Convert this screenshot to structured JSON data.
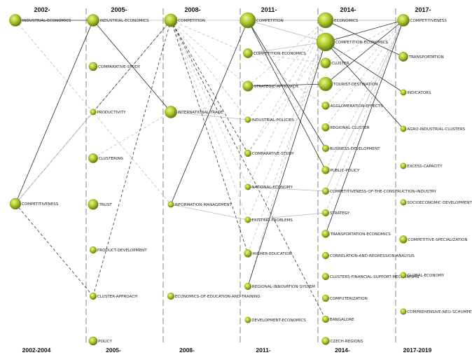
{
  "periods": [
    {
      "top": "2002-",
      "bottom": "2002-2004"
    },
    {
      "top": "2005-",
      "bottom": "2005-"
    },
    {
      "top": "2008-",
      "bottom": "2008-"
    },
    {
      "top": "2011-",
      "bottom": "2011-"
    },
    {
      "top": "2014-",
      "bottom": "2014-"
    },
    {
      "top": "2017-",
      "bottom": "2017-2019"
    }
  ],
  "colors": {
    "node_light": "#e6f27a",
    "node_mid": "#a8c428",
    "node_dark": "#5c7a10",
    "divider": "#9a9a9a"
  },
  "nodes": [
    {
      "id": "p0_industrial_economics",
      "col": 0,
      "label": "INDUSTRIAL-ECONOMICS",
      "weight": 9
    },
    {
      "id": "p0_competitiveness",
      "col": 0,
      "label": "COMPETITIVENESS",
      "weight": 8
    },
    {
      "id": "p1_industrial_economics",
      "col": 1,
      "label": "INDUSTRIAL-ECONOMICS",
      "weight": 9
    },
    {
      "id": "p1_comparative_study",
      "col": 1,
      "label": "COMPARATIVE-STUDY",
      "weight": 5
    },
    {
      "id": "p1_productivity",
      "col": 1,
      "label": "PRODUCTIVITY",
      "weight": 2
    },
    {
      "id": "p1_clustering",
      "col": 1,
      "label": "CLUSTERING",
      "weight": 6
    },
    {
      "id": "p1_trust",
      "col": 1,
      "label": "TRUST",
      "weight": 7
    },
    {
      "id": "p1_product_development",
      "col": 1,
      "label": "PRODUCT-DEVELOPMENT",
      "weight": 3
    },
    {
      "id": "p1_cluster_approach",
      "col": 1,
      "label": "CLUSTER-APPROACH",
      "weight": 3
    },
    {
      "id": "p1_policy",
      "col": 1,
      "label": "POLICY",
      "weight": 5
    },
    {
      "id": "p2_competition",
      "col": 2,
      "label": "COMPETITION",
      "weight": 10
    },
    {
      "id": "p2_international_trade",
      "col": 2,
      "label": "INTERNATIONAL-TRADE",
      "weight": 9
    },
    {
      "id": "p2_information_management",
      "col": 2,
      "label": "INFORMATION-MANAGEMENT",
      "weight": 2
    },
    {
      "id": "p2_economics_of_education",
      "col": 2,
      "label": "ECONOMICS-OF-EDUCATION-AND-TRAINING",
      "weight": 3
    },
    {
      "id": "p3_competition",
      "col": 3,
      "label": "COMPETITION",
      "weight": 13
    },
    {
      "id": "p3_competition_economics",
      "col": 3,
      "label": "COMPETITION-ECONOMICS",
      "weight": 6
    },
    {
      "id": "p3_strategic_approach",
      "col": 3,
      "label": "STRATEGIC-APPROACH",
      "weight": 7
    },
    {
      "id": "p3_industrial_policies",
      "col": 3,
      "label": "INDUSTRIAL-POLICIES",
      "weight": 2
    },
    {
      "id": "p3_comparative_study",
      "col": 3,
      "label": "COMPARATIVE-STUDY",
      "weight": 3
    },
    {
      "id": "p3_national_economy",
      "col": 3,
      "label": "NATIONAL-ECONOMY",
      "weight": 2
    },
    {
      "id": "p3_existing_problems",
      "col": 3,
      "label": "EXISTING-PROBLEMS",
      "weight": 2
    },
    {
      "id": "p3_higher_education",
      "col": 3,
      "label": "HIGHER-EDUCATION",
      "weight": 4
    },
    {
      "id": "p3_regional_innovation_system",
      "col": 3,
      "label": "REGIONAL-INNOVATION-SYSTEM",
      "weight": 3
    },
    {
      "id": "p3_development_economics",
      "col": 3,
      "label": "DEVELOPMENT-ECONOMICS",
      "weight": 2
    },
    {
      "id": "p4_economics",
      "col": 4,
      "label": "ECONOMICS",
      "weight": 13
    },
    {
      "id": "p4_competition_economics",
      "col": 4,
      "label": "COMPETITION-ECONOMICS",
      "weight": 16
    },
    {
      "id": "p4_cluster",
      "col": 4,
      "label": "CLUSTER",
      "weight": 7
    },
    {
      "id": "p4_tourist_destination",
      "col": 4,
      "label": "TOURIST-DESTINATION",
      "weight": 11
    },
    {
      "id": "p4_agglomeration_effects",
      "col": 4,
      "label": "AGGLOMERATION-EFFECTS",
      "weight": 4
    },
    {
      "id": "p4_regional_cluster",
      "col": 4,
      "label": "REGIONAL-CLUSTER",
      "weight": 4
    },
    {
      "id": "p4_business_development",
      "col": 4,
      "label": "BUSINESS-DEVELOPMENT",
      "weight": 3
    },
    {
      "id": "p4_public_policy",
      "col": 4,
      "label": "PUBLIC-POLICY",
      "weight": 4
    },
    {
      "id": "p4_competitiveness_construction",
      "col": 4,
      "label": "COMPETITIVENESS-OF-THE-CONSTRUCTION-INDUSTRY",
      "weight": 3
    },
    {
      "id": "p4_strategy",
      "col": 4,
      "label": "STRATEGY",
      "weight": 3
    },
    {
      "id": "p4_transportation_economics",
      "col": 4,
      "label": "TRANSPORTATION-ECONOMICS",
      "weight": 4
    },
    {
      "id": "p4_correlation_regression",
      "col": 4,
      "label": "CORRELATION-AND-REGRESSION-ANALYSIS",
      "weight": 3
    },
    {
      "id": "p4_clusters_financial_support",
      "col": 4,
      "label": "CLUSTERS-FINANCIAL-SUPPORT-MECHANISMS",
      "weight": 3
    },
    {
      "id": "p4_computerization",
      "col": 4,
      "label": "COMPUTERIZATION",
      "weight": 3
    },
    {
      "id": "p4_bangalore",
      "col": 4,
      "label": "BANGALORE",
      "weight": 3
    },
    {
      "id": "p4_czech_regions",
      "col": 4,
      "label": "CZECH-REGIONS",
      "weight": 4
    },
    {
      "id": "p5_competitiveness",
      "col": 5,
      "label": "COMPETITIVENESS",
      "weight": 9
    },
    {
      "id": "p5_transportation",
      "col": 5,
      "label": "TRANSPORTATION",
      "weight": 6
    },
    {
      "id": "p5_indicators",
      "col": 5,
      "label": "INDICATORS",
      "weight": 2
    },
    {
      "id": "p5_agro_industrial_clusters",
      "col": 5,
      "label": "AGRO-INDUSTRIAL-CLUSTERS",
      "weight": 2
    },
    {
      "id": "p5_excess_capacity",
      "col": 5,
      "label": "EXCESS-CAPACITY",
      "weight": 2
    },
    {
      "id": "p5_socioeconomic_development",
      "col": 5,
      "label": "SOCIOECONOMIC-DEVELOPMENT",
      "weight": 2
    },
    {
      "id": "p5_competitive_specialization",
      "col": 5,
      "label": "COMPETITIVE-SPECIALIZATION",
      "weight": 4
    },
    {
      "id": "p5_global_economy",
      "col": 5,
      "label": "GLOBAL-ECONOMY",
      "weight": 2
    },
    {
      "id": "p5_comprehensive_neo_schumpet",
      "col": 5,
      "label": "COMPREHENSIVE-NEO-SCHUMPET",
      "weight": 2
    }
  ],
  "links": [
    {
      "from": "p0_industrial_economics",
      "to": "p1_industrial_economics",
      "style": "solid-dark"
    },
    {
      "from": "p0_industrial_economics",
      "to": "p2_information_management",
      "style": "dash-light"
    },
    {
      "from": "p0_competitiveness",
      "to": "p1_industrial_economics",
      "style": "solid-dark"
    },
    {
      "from": "p0_competitiveness",
      "to": "p1_productivity",
      "style": "dash-dark"
    },
    {
      "from": "p0_competitiveness",
      "to": "p1_cluster_approach",
      "style": "dash-dark"
    },
    {
      "from": "p0_competitiveness",
      "to": "p2_competition",
      "style": "solid-light"
    },
    {
      "from": "p1_industrial_economics",
      "to": "p2_competition",
      "style": "solid-light"
    },
    {
      "from": "p1_industrial_economics",
      "to": "p2_international_trade",
      "style": "solid-dark"
    },
    {
      "from": "p1_productivity",
      "to": "p2_competition",
      "style": "dash-dark"
    },
    {
      "from": "p1_clustering",
      "to": "p2_international_trade",
      "style": "dash-light"
    },
    {
      "from": "p1_cluster_approach",
      "to": "p2_competition",
      "style": "dash-dark"
    },
    {
      "from": "p2_competition",
      "to": "p3_competition",
      "style": "solid-light"
    },
    {
      "from": "p2_competition",
      "to": "p3_competition_economics",
      "style": "dash-light"
    },
    {
      "from": "p2_competition",
      "to": "p3_strategic_approach",
      "style": "dash-light"
    },
    {
      "from": "p2_competition",
      "to": "p3_industrial_policies",
      "style": "dash-light"
    },
    {
      "from": "p2_competition",
      "to": "p3_comparative_study",
      "style": "dash-dark"
    },
    {
      "from": "p2_competition",
      "to": "p3_national_economy",
      "style": "dash-light"
    },
    {
      "from": "p2_competition",
      "to": "p3_existing_problems",
      "style": "dash-light"
    },
    {
      "from": "p2_competition",
      "to": "p3_higher_education",
      "style": "dash-dark"
    },
    {
      "from": "p2_competition",
      "to": "p4_bangalore",
      "style": "dash-dark"
    },
    {
      "from": "p2_international_trade",
      "to": "p3_industrial_policies",
      "style": "solid-light"
    },
    {
      "from": "p2_information_management",
      "to": "p3_competition",
      "style": "solid-dark"
    },
    {
      "from": "p2_information_management",
      "to": "p3_existing_problems",
      "style": "solid-light"
    },
    {
      "from": "p3_competition",
      "to": "p4_economics",
      "style": "solid-light"
    },
    {
      "from": "p3_competition",
      "to": "p4_competition_economics",
      "style": "solid-light"
    },
    {
      "from": "p3_competition",
      "to": "p4_business_development",
      "style": "solid-dark"
    },
    {
      "from": "p3_competition",
      "to": "p4_public_policy",
      "style": "solid-dark"
    },
    {
      "from": "p3_competition",
      "to": "p5_competitiveness",
      "style": "solid-light"
    },
    {
      "from": "p3_competition_economics",
      "to": "p4_competition_economics",
      "style": "solid-light"
    },
    {
      "from": "p3_competition_economics",
      "to": "p4_cluster",
      "style": "dash-light"
    },
    {
      "from": "p3_competition_economics",
      "to": "p4_agglomeration_effects",
      "style": "dash-light"
    },
    {
      "from": "p3_strategic_approach",
      "to": "p4_tourist_destination",
      "style": "solid-dark"
    },
    {
      "from": "p3_strategic_approach",
      "to": "p4_economics",
      "style": "dash-light"
    },
    {
      "from": "p3_industrial_policies",
      "to": "p4_economics",
      "style": "dash-light"
    },
    {
      "from": "p3_comparative_study",
      "to": "p4_economics",
      "style": "dash-light"
    },
    {
      "from": "p3_comparative_study",
      "to": "p4_competition_economics",
      "style": "dash-light"
    },
    {
      "from": "p3_national_economy",
      "to": "p4_economics",
      "style": "dash-light"
    },
    {
      "from": "p3_national_economy",
      "to": "p4_competitiveness_construction",
      "style": "solid-light"
    },
    {
      "from": "p3_existing_problems",
      "to": "p4_strategy",
      "style": "solid-light"
    },
    {
      "from": "p3_existing_problems",
      "to": "p4_competition_economics",
      "style": "dash-light"
    },
    {
      "from": "p3_higher_education",
      "to": "p4_competition_economics",
      "style": "dash-light"
    },
    {
      "from": "p3_regional_innovation_system",
      "to": "p4_economics",
      "style": "dash-light"
    },
    {
      "from": "p3_regional_innovation_system",
      "to": "p4_competition_economics",
      "style": "solid-dark"
    },
    {
      "from": "p4_economics",
      "to": "p5_competitiveness",
      "style": "solid-light"
    },
    {
      "from": "p4_economics",
      "to": "p5_transportation",
      "style": "solid-dark"
    },
    {
      "from": "p4_competition_economics",
      "to": "p5_competitiveness",
      "style": "solid-dark"
    },
    {
      "from": "p4_competition_economics",
      "to": "p5_indicators",
      "style": "solid-dark"
    },
    {
      "from": "p4_competition_economics",
      "to": "p5_agro_industrial_clusters",
      "style": "solid-dark"
    },
    {
      "from": "p4_cluster",
      "to": "p5_competitiveness",
      "style": "dash-light"
    },
    {
      "from": "p4_tourist_destination",
      "to": "p5_competitiveness",
      "style": "solid-dark"
    },
    {
      "from": "p4_agglomeration_effects",
      "to": "p5_competitiveness",
      "style": "dash-light"
    },
    {
      "from": "p4_regional_cluster",
      "to": "p5_competitiveness",
      "style": "dash-light"
    },
    {
      "from": "p4_public_policy",
      "to": "p5_competitiveness",
      "style": "dash-light"
    },
    {
      "from": "p4_strategy",
      "to": "p5_competitiveness",
      "style": "dash-light"
    },
    {
      "from": "p4_transportation_economics",
      "to": "p5_competitiveness",
      "style": "solid-dark"
    },
    {
      "from": "p4_competitiveness_construction",
      "to": "p5_competitiveness",
      "style": "solid-light"
    }
  ]
}
